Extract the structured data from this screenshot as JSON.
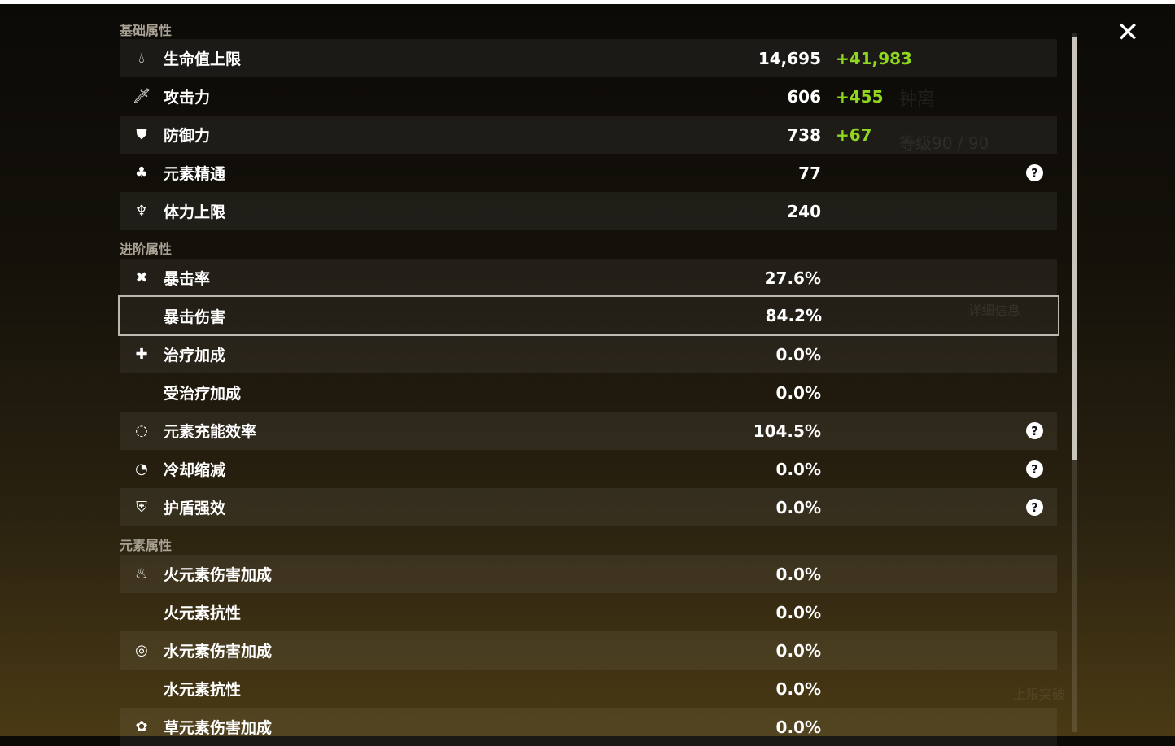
{
  "background": {
    "character_name": "钟离",
    "level": "等级90 / 90",
    "detail_button": "详细信息",
    "ascend_button": "上限突破"
  },
  "sections": [
    {
      "title": "基础属性",
      "rows": [
        {
          "icon": "hp-drop-icon",
          "label": "生命值上限",
          "value": "14,695",
          "bonus": "+41,983"
        },
        {
          "icon": "sword-icon",
          "label": "攻击力",
          "value": "606",
          "bonus": "+455"
        },
        {
          "icon": "shield-icon",
          "label": "防御力",
          "value": "738",
          "bonus": "+67"
        },
        {
          "icon": "elemental-mastery-icon",
          "label": "元素精通",
          "value": "77",
          "help": true
        },
        {
          "icon": "stamina-icon",
          "label": "体力上限",
          "value": "240"
        }
      ]
    },
    {
      "title": "进阶属性",
      "rows": [
        {
          "icon": "crit-rate-icon",
          "label": "暴击率",
          "value": "27.6%"
        },
        {
          "icon": "",
          "label": "暴击伤害",
          "value": "84.2%",
          "selected": true
        },
        {
          "icon": "healing-cross-icon",
          "label": "治疗加成",
          "value": "0.0%"
        },
        {
          "icon": "",
          "label": "受治疗加成",
          "value": "0.0%"
        },
        {
          "icon": "energy-recharge-icon",
          "label": "元素充能效率",
          "value": "104.5%",
          "help": true
        },
        {
          "icon": "cooldown-icon",
          "label": "冷却缩减",
          "value": "0.0%",
          "help": true
        },
        {
          "icon": "shield-strength-icon",
          "label": "护盾强效",
          "value": "0.0%",
          "help": true
        }
      ]
    },
    {
      "title": "元素属性",
      "rows": [
        {
          "icon": "pyro-icon",
          "label": "火元素伤害加成",
          "value": "0.0%"
        },
        {
          "icon": "",
          "label": "火元素抗性",
          "value": "0.0%"
        },
        {
          "icon": "hydro-icon",
          "label": "水元素伤害加成",
          "value": "0.0%"
        },
        {
          "icon": "",
          "label": "水元素抗性",
          "value": "0.0%"
        },
        {
          "icon": "dendro-icon",
          "label": "草元素伤害加成",
          "value": "0.0%"
        }
      ]
    }
  ],
  "help_glyph": "?",
  "close_glyph": "✕"
}
